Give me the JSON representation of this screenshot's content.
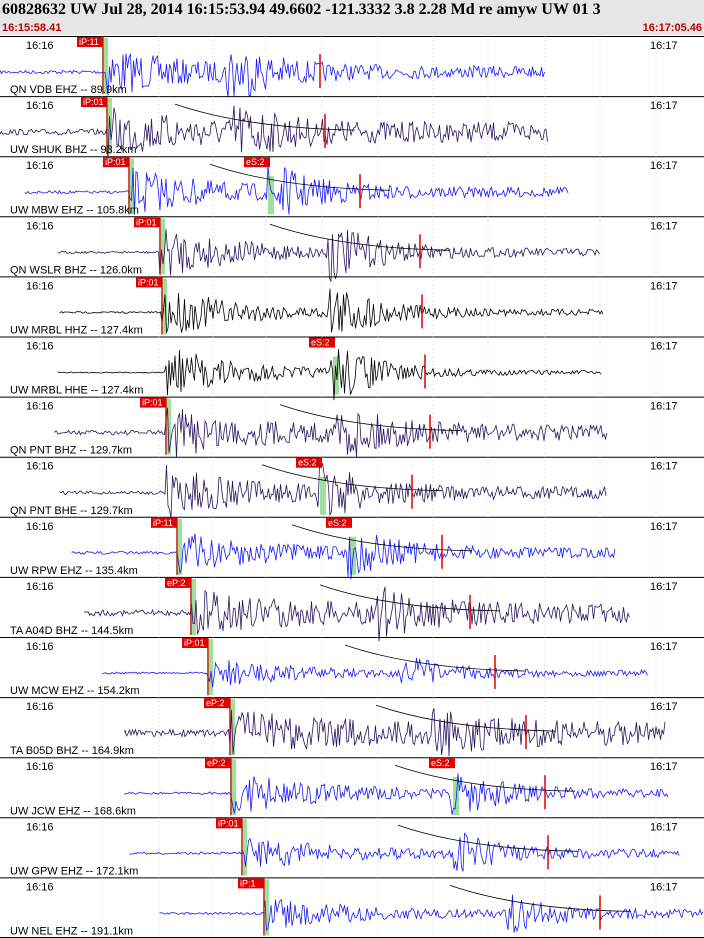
{
  "header": {
    "title": "60828632 UW Jul 28, 2014 16:15:53.94   49.6602 -121.3332  3.8 2.28 Md re amyw UW 01   3",
    "start_time": "16:15:58.41",
    "end_time": "16:17:05.46"
  },
  "panels": [
    {
      "label": "QN VDB EHZ -- 89.9km",
      "left_time": "16:16",
      "right_time": "16:17",
      "pick_label": "iP:11",
      "trace_color": "#1a1aff",
      "has_s": false
    },
    {
      "label": "UW SHUK BHZ -- 93.2km",
      "left_time": "16:16",
      "right_time": "16:17",
      "pick_label": "iP:01",
      "trace_color": "#2a1760",
      "has_s": false
    },
    {
      "label": "UW MBW EHZ -- 105.8km",
      "left_time": "16:16",
      "right_time": "16:17",
      "pick_label": "iP:01",
      "s_label": "eS:2",
      "trace_color": "#1a1aff",
      "has_s": true
    },
    {
      "label": "QN WSLR BHZ -- 126.0km",
      "left_time": "16:16",
      "right_time": "16:17",
      "pick_label": "iP:01",
      "trace_color": "#2a1760",
      "has_s": false
    },
    {
      "label": "UW MRBL HHZ -- 127.4km",
      "left_time": "16:16",
      "right_time": "16:17",
      "pick_label": "iP:01",
      "trace_color": "#000000",
      "has_s": false
    },
    {
      "label": "UW MRBL HHE -- 127.4km",
      "left_time": "16:16",
      "right_time": "16:17",
      "s_label": "eS:2",
      "trace_color": "#000000",
      "has_s": true
    },
    {
      "label": "QN PNT BHZ -- 129.7km",
      "left_time": "16:16",
      "right_time": "16:17",
      "pick_label": "iP:01",
      "trace_color": "#2a1760",
      "has_s": false
    },
    {
      "label": "QN PNT BHE -- 129.7km",
      "left_time": "16:16",
      "right_time": "16:17",
      "s_label": "eS:2",
      "trace_color": "#2a1760",
      "has_s": true
    },
    {
      "label": "UW RPW EHZ -- 135.4km",
      "left_time": "16:16",
      "right_time": "16:17",
      "pick_label": "iP:11",
      "s_label": "eS:2",
      "trace_color": "#1a1aff",
      "has_s": true
    },
    {
      "label": "TA A04D BHZ -- 144.5km",
      "left_time": "16:16",
      "right_time": "16:17",
      "pick_label": "eP:2",
      "trace_color": "#2a1760",
      "has_s": false
    },
    {
      "label": "UW MCW EHZ -- 154.2km",
      "left_time": "16:16",
      "right_time": "16:17",
      "pick_label": "iP:01",
      "trace_color": "#1a1aff",
      "has_s": false
    },
    {
      "label": "TA B05D BHZ -- 164.9km",
      "left_time": "16:16",
      "right_time": "16:17",
      "pick_label": "eP:2",
      "trace_color": "#2a1760",
      "has_s": false
    },
    {
      "label": "UW JCW EHZ -- 168.6km",
      "left_time": "16:16",
      "right_time": "16:17",
      "pick_label": "eP:2",
      "s_label": "eS:2",
      "trace_color": "#1a1aff",
      "has_s": true
    },
    {
      "label": "UW GPW EHZ -- 172.1km",
      "left_time": "16:16",
      "right_time": "16:17",
      "pick_label": "iP:01",
      "trace_color": "#1a1aff",
      "has_s": false
    },
    {
      "label": "UW NEL EHZ -- 191.1km",
      "left_time": "16:16",
      "right_time": "16:17",
      "pick_label": "iP:1",
      "trace_color": "#1a1aff",
      "has_s": false
    }
  ],
  "colors": {
    "pick_box": "#e00000",
    "pick_band": "#9fe09f",
    "grid": "#b0b0b0",
    "separator": "#000000"
  }
}
